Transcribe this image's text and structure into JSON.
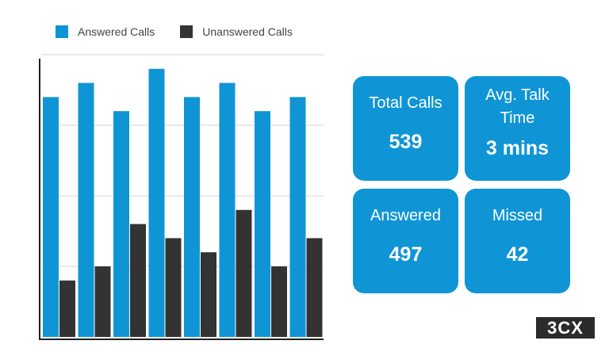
{
  "legend": {
    "answered": "Answered Calls",
    "unanswered": "Unanswered Calls"
  },
  "colors": {
    "answered": "#0f95d6",
    "unanswered": "#333333",
    "card_bg": "#0f95d6",
    "grid": "#d4d4d4"
  },
  "chart_data": {
    "type": "bar",
    "categories": [
      "",
      "",
      "",
      "",
      "",
      "",
      "",
      ""
    ],
    "series": [
      {
        "name": "Answered Calls",
        "values": [
          85,
          90,
          80,
          95,
          85,
          90,
          80,
          85
        ]
      },
      {
        "name": "Unanswered Calls",
        "values": [
          20,
          25,
          40,
          35,
          30,
          45,
          25,
          35
        ]
      }
    ],
    "ylim": [
      0,
      100
    ],
    "grid": true,
    "legend_position": "top-left"
  },
  "stats": {
    "total_calls": {
      "label": "Total Calls",
      "value": "539"
    },
    "avg_talk_time": {
      "label_line1": "Avg. Talk",
      "label_line2": "Time",
      "value": "3 mins"
    },
    "answered": {
      "label": "Answered",
      "value": "497"
    },
    "missed": {
      "label": "Missed",
      "value": "42"
    }
  },
  "logo": {
    "text": "3CX",
    "icon": "3cx-logo"
  }
}
